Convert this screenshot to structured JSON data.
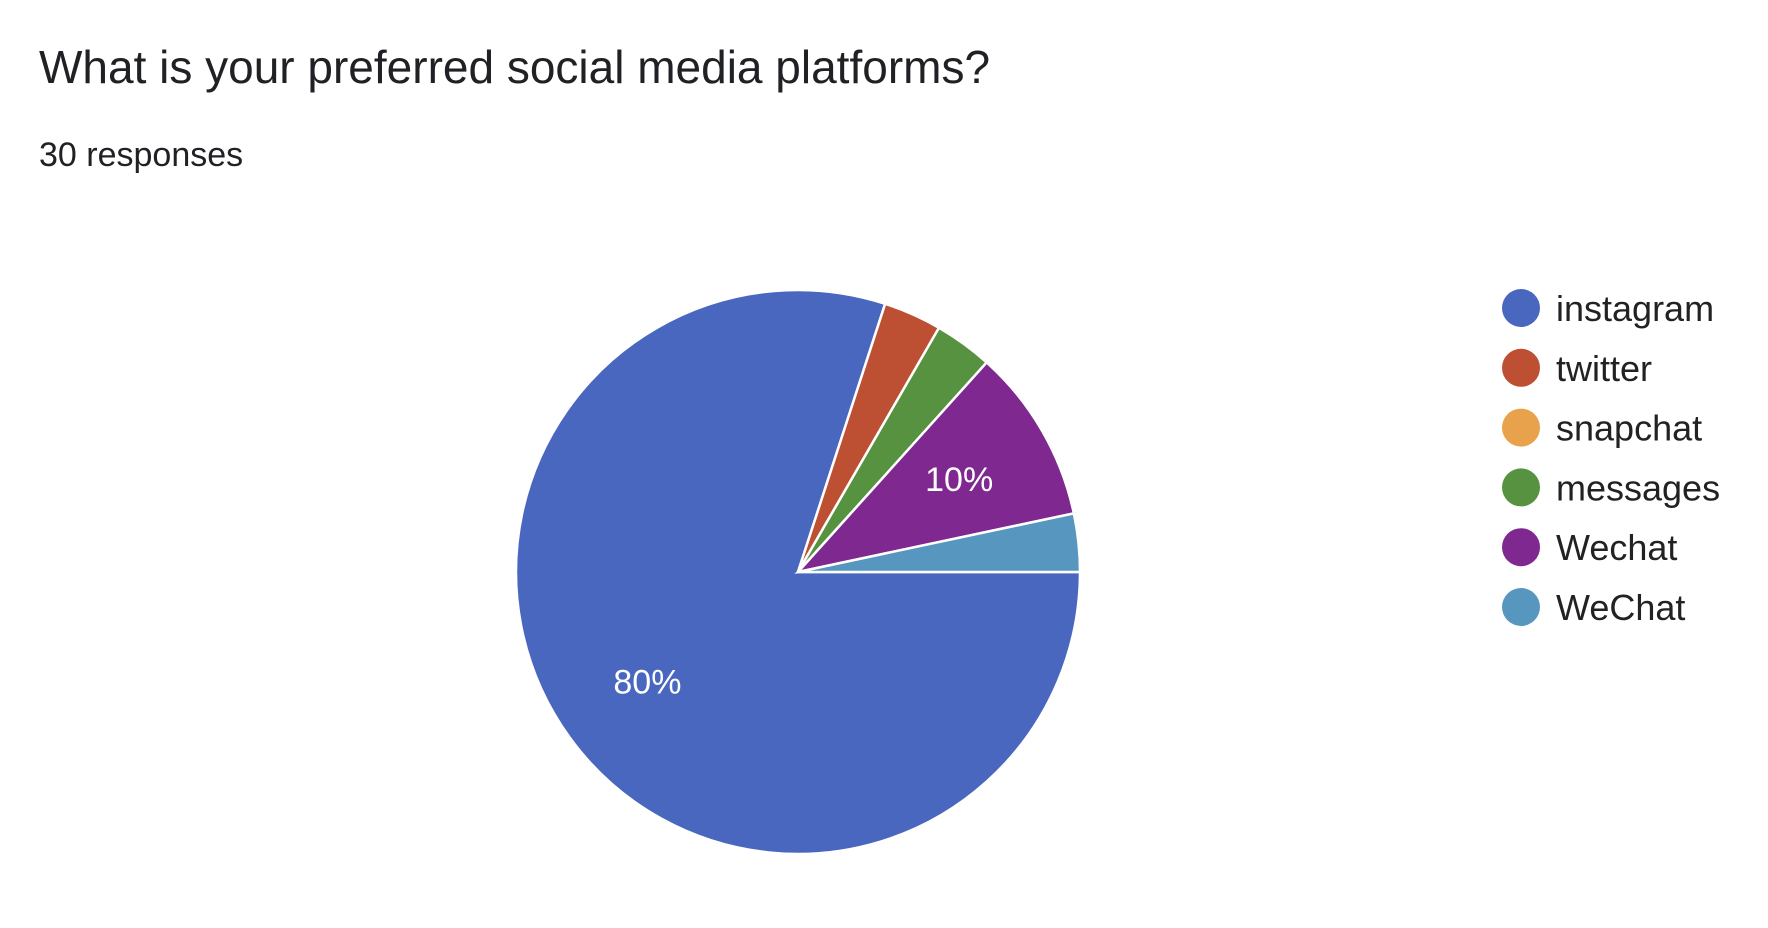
{
  "chart_data": {
    "type": "pie",
    "title": "What is your preferred social media platforms?",
    "subtitle": "30 responses",
    "legend_position": "right",
    "start_angle_deg": 90,
    "direction": "clockwise",
    "slices": [
      {
        "label": "instagram",
        "value": 24,
        "percent_label": "80%",
        "color": "#4a67c0"
      },
      {
        "label": "twitter",
        "value": 1,
        "percent_label": "",
        "color": "#bd4f32"
      },
      {
        "label": "snapchat",
        "value": 0,
        "percent_label": "",
        "color": "#e8a24b"
      },
      {
        "label": "messages",
        "value": 1,
        "percent_label": "",
        "color": "#56923f"
      },
      {
        "label": "Wechat",
        "value": 3,
        "percent_label": "10%",
        "color": "#7e2890"
      },
      {
        "label": "WeChat",
        "value": 1,
        "percent_label": "",
        "color": "#5796bf"
      }
    ]
  }
}
